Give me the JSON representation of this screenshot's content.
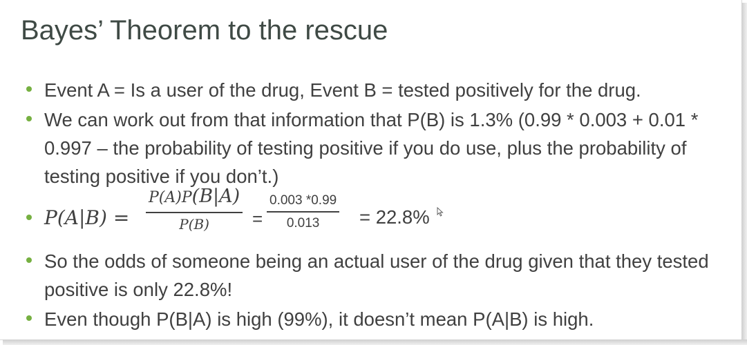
{
  "slide": {
    "title": "Bayes’ Theorem to the rescue",
    "accent_color": "#76b041",
    "bullets": [
      "Event A = Is a user of the drug, Event B = tested positively for the drug.",
      "We can work out from that information that P(B) is 1.3% (0.99 * 0.003 + 0.01 * 0.997 – the probability of testing positive if you do use, plus the probability of testing positive if you don’t.)",
      "So the odds of someone being an actual user of the drug given that they tested positive is only 22.8%!",
      "Even though P(B|A) is high (99%), it doesn’t mean P(A|B) is high."
    ],
    "formula": {
      "lhs": "P(A|B) =",
      "frac1_num_small": "P(A)P",
      "frac1_num_big": "(B|A)",
      "frac1_den": "P(B)",
      "eq": "=",
      "frac2_num": "0.003 *0.99",
      "frac2_den": "0.013",
      "result": "= 22.8%"
    }
  }
}
